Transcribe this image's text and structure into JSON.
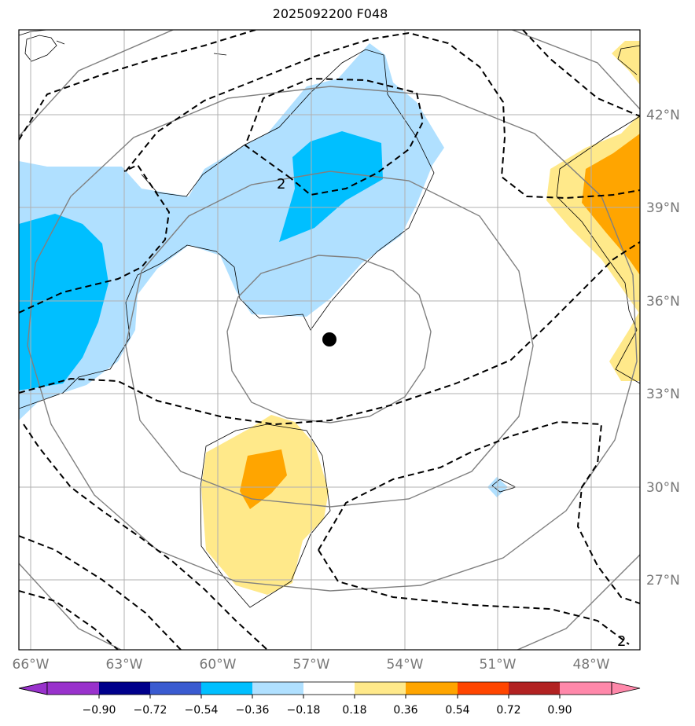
{
  "title": "2025092200 F048",
  "map": {
    "lon_ticks": [
      "66°W",
      "63°W",
      "60°W",
      "57°W",
      "54°W",
      "51°W",
      "48°W"
    ],
    "lat_ticks": [
      "42°N",
      "39°N",
      "36°N",
      "33°N",
      "30°N",
      "27°N"
    ],
    "contour_label": "2",
    "storm_center": {
      "lon": -56.4,
      "lat": 34.8
    },
    "grid": true
  },
  "colorbar": {
    "ticks": [
      "−0.90",
      "−0.72",
      "−0.54",
      "−0.36",
      "−0.18",
      "0.18",
      "0.36",
      "0.54",
      "0.72",
      "0.90"
    ],
    "colors": [
      "#9932cc",
      "#00008b",
      "#3a5bd0",
      "#00bfff",
      "#b0e0ff",
      "#ffffff",
      "#ffe98a",
      "#ffa500",
      "#ff4500",
      "#b22222",
      "#ff88aa"
    ]
  },
  "colors": {
    "grid": "#b0b0b0",
    "range_ring": "#808080",
    "contour": "#000000"
  }
}
